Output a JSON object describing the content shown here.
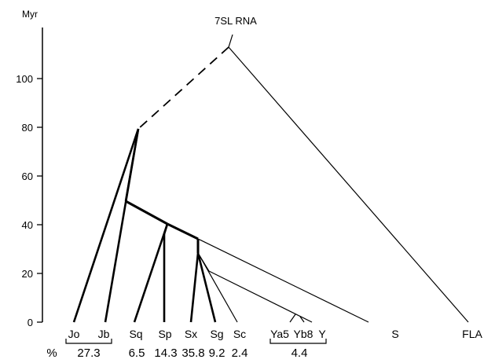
{
  "axis": {
    "label": "Myr",
    "ticks": [
      "0",
      "20",
      "40",
      "60",
      "80",
      "100"
    ]
  },
  "root_label": "7SL RNA",
  "leaves": {
    "Jo": "Jo",
    "Jb": "Jb",
    "Sq": "Sq",
    "Sp": "Sp",
    "Sx": "Sx",
    "Sg": "Sg",
    "Sc": "Sc",
    "Ya5": "Ya5",
    "Yb8": "Yb8",
    "Y": "Y",
    "S": "S",
    "FLA": "FLA"
  },
  "percent": {
    "symbol": "%",
    "J": "27.3",
    "Sq": "6.5",
    "Sp": "14.3",
    "Sx": "35.8",
    "Sg": "9.2",
    "Sc": "2.4",
    "Y": "4.4"
  }
}
